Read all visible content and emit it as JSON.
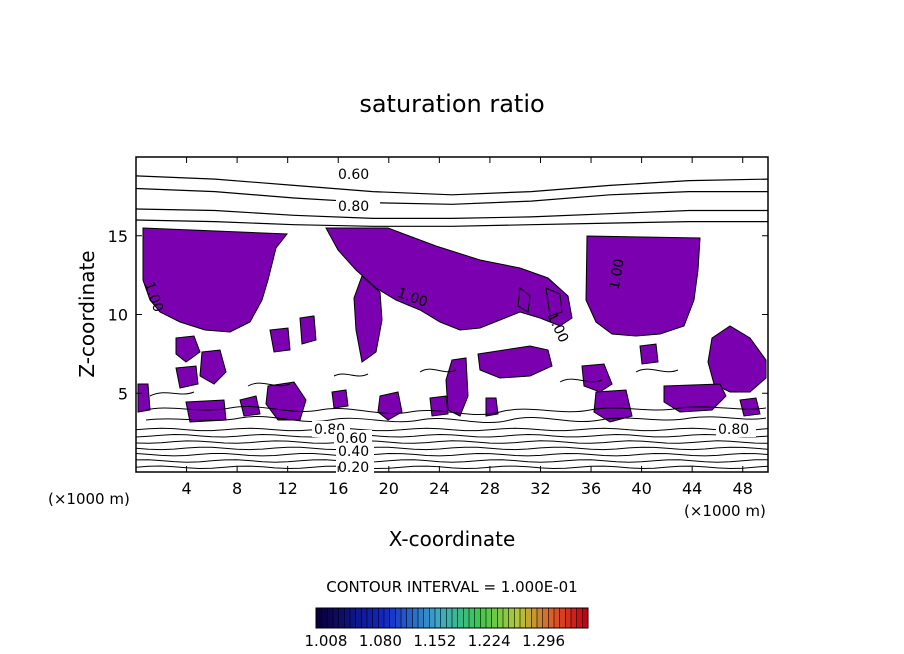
{
  "chart_data": {
    "type": "contour",
    "title": "saturation ratio",
    "xlabel": "X-coordinate",
    "ylabel": "Z-coordinate",
    "x_unit": "(×1000 m)",
    "y_unit": "(×1000 m)",
    "xlim": [
      0,
      50
    ],
    "ylim": [
      0,
      20
    ],
    "x_ticks": [
      "4",
      "8",
      "12",
      "16",
      "20",
      "24",
      "28",
      "32",
      "36",
      "40",
      "44",
      "48"
    ],
    "y_ticks": [
      "5",
      "10",
      "15"
    ],
    "contour_interval": "CONTOUR INTERVAL = 1.000E-01",
    "contour_labels": [
      "0.60",
      "0.80",
      "1.00",
      "1.00",
      "1.00",
      "1.00",
      "0.80",
      "0.80",
      "0.60",
      "0.40",
      "0.20"
    ],
    "shading": {
      "colorbar_labels": [
        "1.008",
        "1.080",
        "1.152",
        "1.224",
        "1.296"
      ],
      "fill_color": "#7a00b0"
    },
    "upper_contours": [
      {
        "level": 0.6,
        "z": [
          18.8,
          18.6,
          18.2,
          17.8,
          17.6,
          17.8,
          18.2,
          18.5,
          18.6
        ]
      },
      {
        "level": 0.7,
        "z": [
          18.0,
          17.8,
          17.4,
          17.1,
          17.0,
          17.2,
          17.6,
          17.8,
          17.8
        ]
      },
      {
        "level": 0.8,
        "z": [
          16.7,
          16.6,
          16.3,
          16.1,
          16.1,
          16.2,
          16.4,
          16.6,
          16.6
        ]
      },
      {
        "level": 0.9,
        "z": [
          16.0,
          15.9,
          15.7,
          15.6,
          15.6,
          15.7,
          15.8,
          15.9,
          15.9
        ]
      }
    ],
    "lower_contour_levels_z": [
      0.3,
      0.7,
      1.1,
      1.5,
      1.9,
      2.3,
      2.7
    ]
  }
}
